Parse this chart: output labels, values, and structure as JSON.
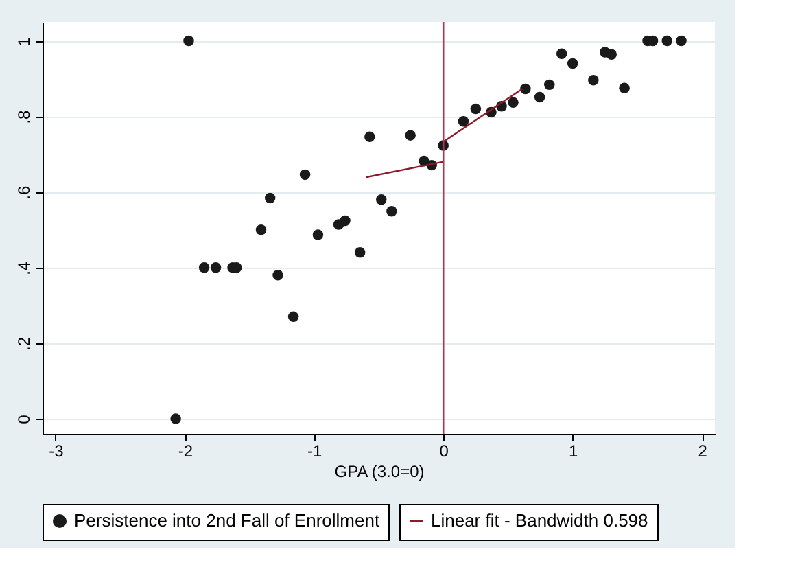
{
  "chart_data": {
    "type": "scatter",
    "xlabel": "GPA (3.0=0)",
    "xlim": [
      -3.1,
      2.1
    ],
    "xticks": [
      -3,
      -2,
      -1,
      0,
      1,
      2
    ],
    "ylim": [
      -0.04,
      1.05
    ],
    "yticks": [
      0,
      {
        "value": 0.2,
        "label": ".2"
      },
      {
        "value": 0.4,
        "label": ".4"
      },
      {
        "value": 0.6,
        "label": ".6"
      },
      {
        "value": 0.8,
        "label": ".8"
      },
      1
    ],
    "grid": "y",
    "legend": "bottom",
    "marker": "circle",
    "ref_lines": [
      {
        "axis": "x",
        "value": 0,
        "color": "#b03a55"
      }
    ],
    "series": [
      {
        "name": "Persistence into 2nd Fall of Enrollment",
        "color": "#1a1a1a",
        "x": [
          -2.07,
          -1.97,
          -1.85,
          -1.76,
          -1.63,
          -1.6,
          -1.41,
          -1.34,
          -1.28,
          -1.16,
          -1.07,
          -0.97,
          -0.81,
          -0.76,
          -0.645,
          -0.57,
          -0.48,
          -0.4,
          -0.255,
          -0.15,
          -0.09,
          0.0,
          0.155,
          0.25,
          0.37,
          0.45,
          0.54,
          0.635,
          0.745,
          0.82,
          0.915,
          1.0,
          1.16,
          1.25,
          1.3,
          1.4,
          1.58,
          1.62,
          1.73,
          1.84
        ],
        "values": [
          0.0,
          1.0,
          0.4,
          0.4,
          0.4,
          0.4,
          0.5,
          0.584,
          0.38,
          0.27,
          0.646,
          0.487,
          0.514,
          0.524,
          0.44,
          0.746,
          0.58,
          0.549,
          0.75,
          0.682,
          0.671,
          0.723,
          0.787,
          0.82,
          0.811,
          0.827,
          0.837,
          0.873,
          0.851,
          0.884,
          0.966,
          0.94,
          0.896,
          0.97,
          0.964,
          0.875,
          1.0,
          1.0,
          1.0,
          1.0
        ]
      },
      {
        "name": "Linear fit - Bandwidth 0.598",
        "type": "line",
        "marker": "none",
        "line_style": "solid",
        "color": "#8b1a2b",
        "x": [
          -0.6,
          0.0
        ],
        "values": [
          0.639,
          0.68
        ]
      },
      {
        "type": "line",
        "marker": "none",
        "line_style": "solid",
        "color": "#8b1a2b",
        "x": [
          0.0,
          0.61
        ],
        "values": [
          0.733,
          0.873
        ]
      }
    ]
  }
}
